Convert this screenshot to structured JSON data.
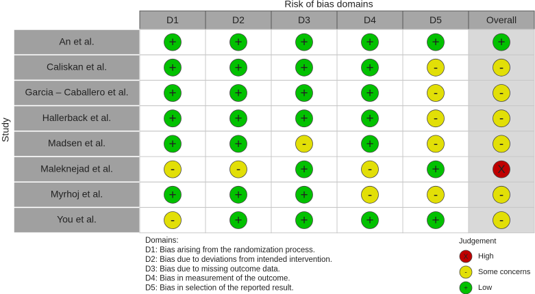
{
  "header": {
    "title": "Risk of bias domains",
    "y_label": "Study",
    "columns": [
      "D1",
      "D2",
      "D3",
      "D4",
      "D5",
      "Overall"
    ]
  },
  "rows": [
    {
      "study": "An et al.",
      "judgements": [
        "+",
        "+",
        "+",
        "+",
        "+",
        "+"
      ]
    },
    {
      "study": "Caliskan et al.",
      "judgements": [
        "+",
        "+",
        "+",
        "+",
        "-",
        "-"
      ]
    },
    {
      "study": "Garcia – Caballero et al.",
      "judgements": [
        "+",
        "+",
        "+",
        "+",
        "-",
        "-"
      ]
    },
    {
      "study": "Hallerback et al.",
      "judgements": [
        "+",
        "+",
        "+",
        "+",
        "-",
        "-"
      ]
    },
    {
      "study": "Madsen et al.",
      "judgements": [
        "+",
        "+",
        "-",
        "+",
        "-",
        "-"
      ]
    },
    {
      "study": "Maleknejad et al.",
      "judgements": [
        "-",
        "-",
        "+",
        "-",
        "+",
        "X"
      ]
    },
    {
      "study": "Myrhoj et al.",
      "judgements": [
        "+",
        "+",
        "+",
        "-",
        "-",
        "-"
      ]
    },
    {
      "study": "You et al.",
      "judgements": [
        "-",
        "+",
        "+",
        "+",
        "+",
        "-"
      ]
    }
  ],
  "legend": {
    "domains_title": "Domains:",
    "domains": [
      "D1: Bias arising from the randomization process.",
      "D2: Bias due to deviations from intended intervention.",
      "D3: Bias due to missing outcome data.",
      "D4: Bias in measurement of the outcome.",
      "D5: Bias in selection of the reported result."
    ],
    "judgement_title": "Judgement",
    "items": [
      {
        "symbol": "X",
        "label": "High",
        "color": "#bf0000"
      },
      {
        "symbol": "-",
        "label": "Some concerns",
        "color": "#e2df07"
      },
      {
        "symbol": "+",
        "label": "Low",
        "color": "#02c100"
      }
    ]
  }
}
